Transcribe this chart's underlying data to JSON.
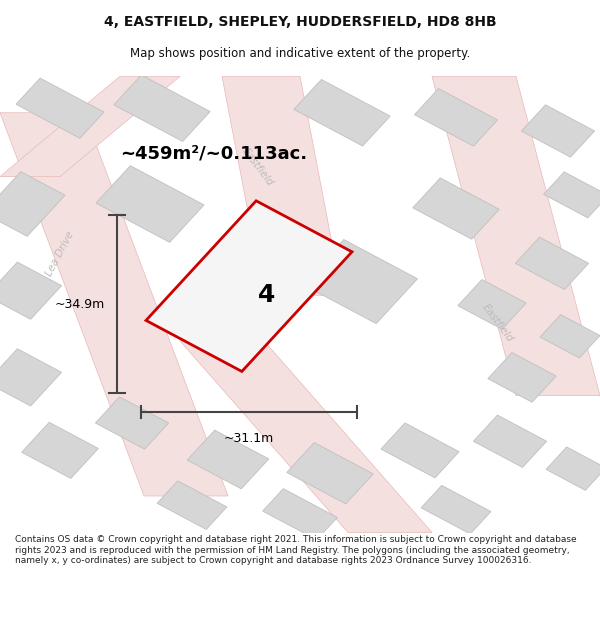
{
  "title_line1": "4, EASTFIELD, SHEPLEY, HUDDERSFIELD, HD8 8HB",
  "title_line2": "Map shows position and indicative extent of the property.",
  "area_text": "~459m²/~0.113ac.",
  "dim_width": "~31.1m",
  "dim_height": "~34.9m",
  "property_number": "4",
  "footer_text": "Contains OS data © Crown copyright and database right 2021. This information is subject to Crown copyright and database rights 2023 and is reproduced with the permission of HM Land Registry. The polygons (including the associated geometry, namely x, y co-ordinates) are subject to Crown copyright and database rights 2023 Ordnance Survey 100026316.",
  "map_bg": "#efefef",
  "building_fill": "#d6d6d6",
  "building_edge": "#c0c0c0",
  "road_fill": "#f5e0e0",
  "road_edge": "#e8b8b8",
  "property_color": "#cc0000",
  "property_fill": "#f5f5f5",
  "dim_color": "#444444",
  "road_label_color": "#bbbbbb",
  "title_color": "#111111",
  "footer_color": "#222222"
}
